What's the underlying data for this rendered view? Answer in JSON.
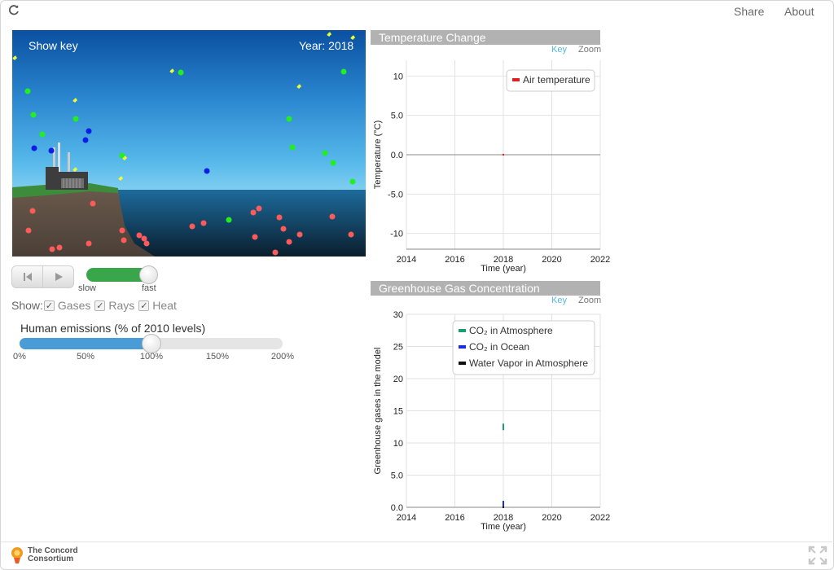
{
  "header": {
    "share_label": "Share",
    "about_label": "About"
  },
  "simulation": {
    "show_key_label": "Show key",
    "year_label": "Year: 2018"
  },
  "controls": {
    "speed_slow_label": "slow",
    "speed_fast_label": "fast",
    "speed_value": 0.9,
    "show_label": "Show:",
    "options": [
      {
        "label": "Gases",
        "checked": true
      },
      {
        "label": "Rays",
        "checked": true
      },
      {
        "label": "Heat",
        "checked": true
      }
    ],
    "emissions_title": "Human emissions (% of 2010 levels)",
    "emissions_value": 100,
    "emissions_ticks": [
      "0%",
      "50%",
      "100%",
      "150%",
      "200%"
    ]
  },
  "graph_links": {
    "key": "Key",
    "zoom": "Zoom"
  },
  "chart_data": [
    {
      "type": "line",
      "title": "Temperature Change",
      "xlabel": "Time (year)",
      "ylabel": "Temperature (°C)",
      "xlim": [
        2014,
        2022
      ],
      "ylim": [
        -12,
        12
      ],
      "x_ticks": [
        "2014",
        "2016",
        "2018",
        "2020",
        "2022"
      ],
      "y_ticks": [
        "10",
        "5.0",
        "0.0",
        "-5.0",
        "-10"
      ],
      "legend_position": "top-right",
      "series": [
        {
          "name": "Air temperature",
          "color": "#e02020",
          "points": [
            [
              2018,
              0.0
            ]
          ]
        }
      ]
    },
    {
      "type": "line",
      "title": "Greenhouse Gas Concentration",
      "xlabel": "Time (year)",
      "ylabel": "Greenhouse gases in the model",
      "xlim": [
        2014,
        2022
      ],
      "ylim": [
        0,
        30
      ],
      "x_ticks": [
        "2014",
        "2016",
        "2018",
        "2020",
        "2022"
      ],
      "y_ticks": [
        "30",
        "25",
        "20",
        "15",
        "10",
        "5.0",
        "0.0"
      ],
      "legend_position": "top-right",
      "series": [
        {
          "name": "CO₂ in Atmosphere",
          "color": "#1a9e6e",
          "points": [
            [
              2018,
              12.5
            ]
          ]
        },
        {
          "name": "CO₂ in Ocean",
          "color": "#1a2ee0",
          "points": [
            [
              2018,
              0.5
            ]
          ]
        },
        {
          "name": "Water Vapor in Atmosphere",
          "color": "#111111",
          "points": [
            [
              2018,
              0.0
            ]
          ]
        }
      ]
    }
  ],
  "footer": {
    "logo_line1": "The Concord",
    "logo_line2": "Consortium"
  }
}
